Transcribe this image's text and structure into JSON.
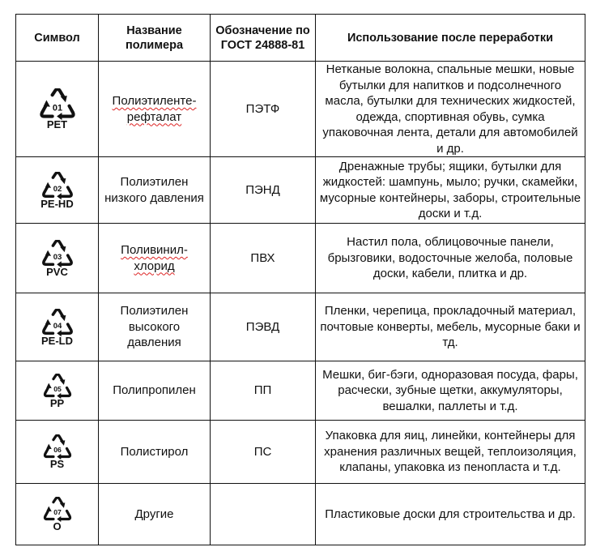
{
  "header": {
    "symbol": "Символ",
    "name": "Название полимера",
    "gost": "Обозначение по ГОСТ 24888-81",
    "usage": "Использование после переработки"
  },
  "rows": [
    {
      "number": "01",
      "code": "PET",
      "name": "Полиэтиленте-рефталат",
      "name_spellcheck": true,
      "gost": "ПЭТФ",
      "usage": "Нетканые волокна, спальные мешки, новые бутылки для напитков и подсолнечного масла, бутылки для технических жидкостей, одежда, спортивная обувь, сумка упаковочная лента, детали для автомобилей и др."
    },
    {
      "number": "02",
      "code": "PE-HD",
      "name": "Полиэтилен низкого давления",
      "name_spellcheck": false,
      "gost": "ПЭНД",
      "usage": "Дренажные трубы; ящики, бутылки для жидкостей: шампунь, мыло; ручки, скамейки, мусорные контейнеры, заборы, строительные доски и т.д."
    },
    {
      "number": "03",
      "code": "PVC",
      "name": "Поливинил-хлорид",
      "name_spellcheck": true,
      "gost": "ПВХ",
      "usage": "Настил пола, облицовочные панели, брызговики, водосточные желоба, половые доски, кабели, плитка и др."
    },
    {
      "number": "04",
      "code": "PE-LD",
      "name": "Полиэтилен высокого давления",
      "name_spellcheck": false,
      "gost": "ПЭВД",
      "usage": "Пленки, черепица, прокладочный материал, почтовые конверты, мебель, мусорные баки и тд."
    },
    {
      "number": "05",
      "code": "PP",
      "name": "Полипропилен",
      "name_spellcheck": false,
      "gost": "ПП",
      "usage": "Мешки, биг-бэги, одноразовая посуда, фары, расчески, зубные щетки, аккумуляторы, вешалки, паллеты и т.д."
    },
    {
      "number": "06",
      "code": "PS",
      "name": "Полистирол",
      "name_spellcheck": false,
      "gost": "ПС",
      "usage": "Упаковка для яиц, линейки, контейнеры для хранения различных вещей, теплоизоляция, клапаны, упаковка из пенопласта и т.д."
    },
    {
      "number": "07",
      "code": "O",
      "name": "Другие",
      "name_spellcheck": false,
      "gost": "",
      "usage": "Пластиковые доски для строительства и др."
    }
  ],
  "icon": "recycling-triangle-icon",
  "colors": {
    "border": "#111111",
    "spellcheck": "#dd2222"
  }
}
